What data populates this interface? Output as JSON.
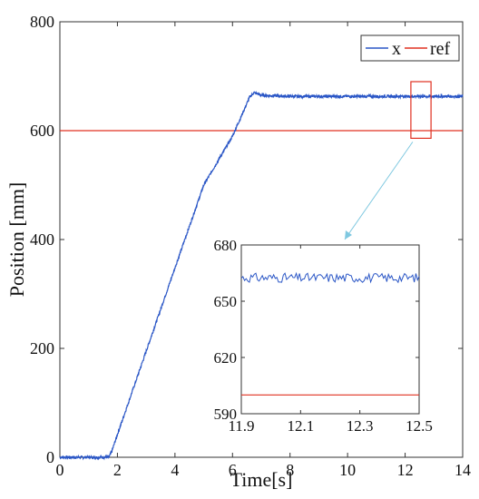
{
  "chart_data": [
    {
      "type": "line",
      "xlabel": "Time[s]",
      "ylabel": "Position [mm]",
      "xlim": [
        0,
        14
      ],
      "ylim": [
        0,
        800
      ],
      "xticks": [
        "0",
        "2",
        "4",
        "6",
        "8",
        "10",
        "12",
        "14"
      ],
      "yticks": [
        "0",
        "200",
        "400",
        "600",
        "800"
      ],
      "grid": false,
      "legend_position": "top-right",
      "series": [
        {
          "name": "x",
          "color": "#2a56c6",
          "points": [
            [
              0,
              0
            ],
            [
              1.7,
              0
            ],
            [
              1.8,
              10
            ],
            [
              2.0,
              42
            ],
            [
              3.0,
              195
            ],
            [
              4.0,
              348
            ],
            [
              5.0,
              500
            ],
            [
              6.0,
              590
            ],
            [
              6.6,
              662
            ],
            [
              6.75,
              670
            ],
            [
              7.0,
              665
            ],
            [
              8.0,
              663
            ],
            [
              10.0,
              663
            ],
            [
              12.0,
              663
            ],
            [
              14.0,
              663
            ]
          ]
        },
        {
          "name": "ref",
          "color": "#e03020",
          "points": [
            [
              0,
              600
            ],
            [
              14,
              600
            ]
          ]
        }
      ],
      "highlight": {
        "x_range": [
          12.2,
          12.9
        ],
        "y_range": [
          586,
          690
        ],
        "color": "#e03020"
      }
    },
    {
      "type": "line",
      "role": "inset-zoom",
      "xlim": [
        11.9,
        12.5
      ],
      "ylim": [
        590,
        680
      ],
      "xticks": [
        "11.9",
        "12.1",
        "12.3",
        "12.5"
      ],
      "yticks": [
        "590",
        "620",
        "650",
        "680"
      ],
      "series": [
        {
          "name": "x",
          "color": "#2a56c6",
          "mean": 662.5,
          "noise_amplitude": 2.5
        },
        {
          "name": "ref",
          "color": "#e03020",
          "value": 600
        }
      ]
    }
  ]
}
